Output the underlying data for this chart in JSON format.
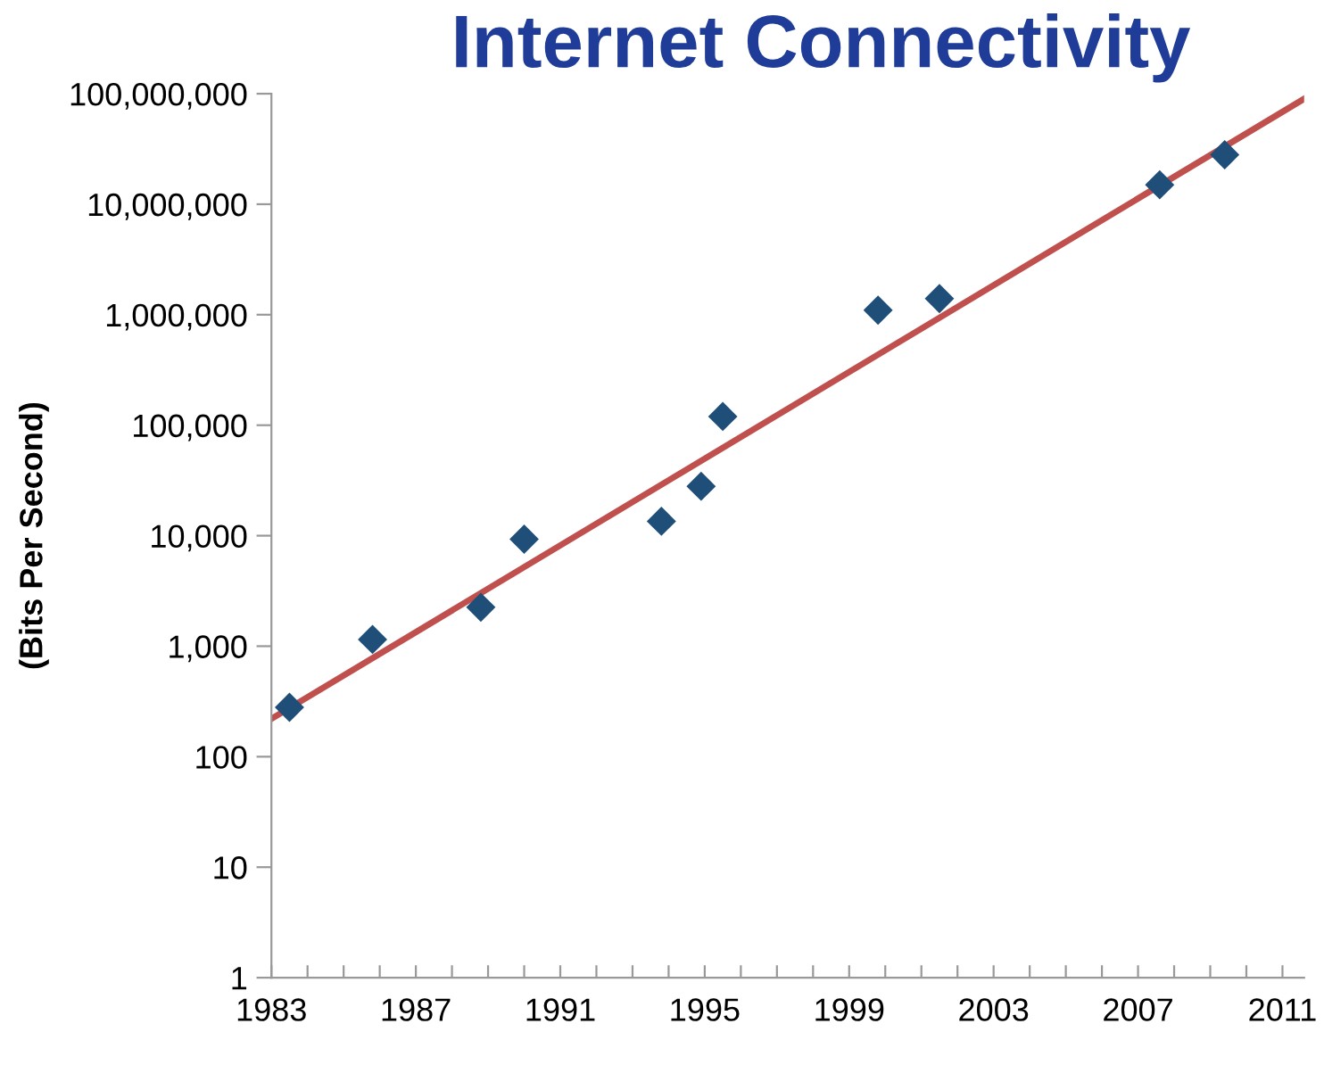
{
  "chart_data": {
    "type": "scatter",
    "title": "Internet Connectivity",
    "ylabel": "(Bits Per Second)",
    "log": "y",
    "marker": "diamond",
    "grid": false,
    "legend": false,
    "xlim": [
      1983,
      2011.6
    ],
    "ylim": [
      1,
      100000000
    ],
    "xticks": [
      1983,
      {
        "value": 1984,
        "label": null
      },
      {
        "value": 1985,
        "label": null
      },
      {
        "value": 1986,
        "label": null
      },
      1987,
      {
        "value": 1988,
        "label": null
      },
      {
        "value": 1989,
        "label": null
      },
      {
        "value": 1990,
        "label": null
      },
      1991,
      {
        "value": 1992,
        "label": null
      },
      {
        "value": 1993,
        "label": null
      },
      {
        "value": 1994,
        "label": null
      },
      1995,
      {
        "value": 1996,
        "label": null
      },
      {
        "value": 1997,
        "label": null
      },
      {
        "value": 1998,
        "label": null
      },
      1999,
      {
        "value": 2000,
        "label": null
      },
      {
        "value": 2001,
        "label": null
      },
      {
        "value": 2002,
        "label": null
      },
      2003,
      {
        "value": 2004,
        "label": null
      },
      {
        "value": 2005,
        "label": null
      },
      {
        "value": 2006,
        "label": null
      },
      2007,
      {
        "value": 2008,
        "label": null
      },
      {
        "value": 2009,
        "label": null
      },
      {
        "value": 2010,
        "label": null
      },
      2011
    ],
    "yticks": [
      1,
      10,
      100,
      {
        "value": 1000,
        "label": "1,000"
      },
      {
        "value": 10000,
        "label": "10,000"
      },
      {
        "value": 100000,
        "label": "100,000"
      },
      {
        "value": 1000000,
        "label": "1,000,000"
      },
      {
        "value": 10000000,
        "label": "10,000,000"
      },
      {
        "value": 100000000,
        "label": "100,000,000"
      }
    ],
    "series": [
      {
        "color": "#1f4e79",
        "x": [
          1983.5,
          1985.8,
          1988.8,
          1990,
          1993.8,
          1994.9,
          1995.5,
          1999.8,
          2001.5,
          2007.6,
          2009.4
        ],
        "values": [
          280,
          1150,
          2250,
          9300,
          13500,
          28000,
          120000,
          1100000,
          1400000,
          15000000,
          28000000
        ]
      },
      {
        "type": "line",
        "color": "#c0504d",
        "line_style": "solid",
        "marker": "none",
        "x": [
          1983,
          2011.6
        ],
        "values": [
          220,
          90000000
        ]
      }
    ]
  }
}
